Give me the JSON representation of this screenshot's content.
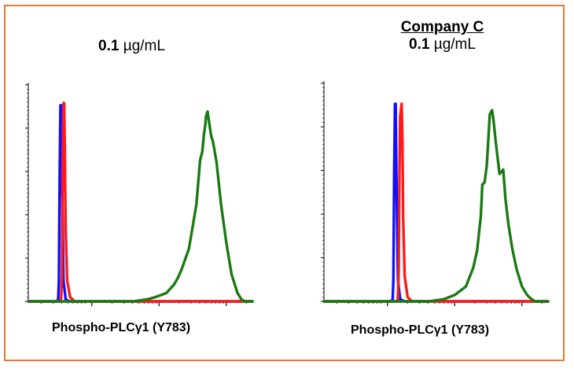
{
  "colors": {
    "frame": "#e07b39",
    "blue": "#1010ff",
    "red": "#ff1a1a",
    "green": "#1a7a12"
  },
  "chart_data": [
    {
      "type": "line",
      "title": "",
      "subtitle_value": "0.1",
      "subtitle_unit": "µg/mL",
      "xlabel": "Phospho-PLCγ1 (Y783)",
      "ylabel": "",
      "x_scale": "log",
      "x_range": [
        0,
        300
      ],
      "y_range": [
        0,
        100
      ],
      "series": [
        {
          "color": "blue",
          "x": [
            0,
            20,
            30,
            38,
            40,
            41,
            42,
            43,
            44,
            45,
            47,
            50,
            55,
            70,
            300
          ],
          "y": [
            0,
            0,
            0,
            0,
            1,
            10,
            60,
            93,
            93,
            60,
            10,
            1,
            0,
            0,
            0
          ]
        },
        {
          "color": "red",
          "x": [
            0,
            30,
            40,
            43,
            44,
            45,
            46,
            47,
            48,
            49,
            50,
            52,
            56,
            62,
            70,
            300
          ],
          "y": [
            0,
            0,
            0,
            0,
            2,
            12,
            65,
            94,
            94,
            70,
            35,
            10,
            2,
            0,
            0,
            0
          ]
        },
        {
          "color": "green",
          "x": [
            0,
            100,
            140,
            160,
            170,
            185,
            195,
            200,
            205,
            215,
            225,
            230,
            233,
            235,
            237,
            238,
            240,
            242,
            245,
            247,
            252,
            258,
            265,
            272,
            280,
            285,
            290,
            300
          ],
          "y": [
            0,
            0,
            0,
            1,
            2,
            4,
            8,
            11,
            15,
            25,
            46,
            67,
            71,
            79,
            84,
            88,
            90,
            85,
            78,
            76,
            66,
            46,
            28,
            13,
            4,
            1,
            0,
            0
          ]
        }
      ]
    },
    {
      "type": "line",
      "title": "Company C",
      "subtitle_value": "0.1",
      "subtitle_unit": "µg/mL",
      "xlabel": "Phospho-PLCγ1 (Y783)",
      "ylabel": "",
      "x_scale": "log",
      "x_range": [
        0,
        300
      ],
      "y_range": [
        0,
        100
      ],
      "series": [
        {
          "color": "blue",
          "x": [
            0,
            60,
            80,
            90,
            92,
            93,
            94,
            95,
            96,
            97,
            99,
            102,
            108,
            120,
            300
          ],
          "y": [
            0,
            0,
            0,
            0,
            1,
            10,
            60,
            93,
            93,
            60,
            10,
            1,
            0,
            0,
            0
          ]
        },
        {
          "color": "red",
          "x": [
            0,
            80,
            95,
            98,
            99,
            100,
            101,
            102,
            104,
            105,
            106,
            108,
            112,
            118,
            125,
            300
          ],
          "y": [
            0,
            0,
            0,
            0,
            2,
            14,
            60,
            87,
            93,
            75,
            40,
            12,
            2,
            0,
            0,
            0
          ]
        },
        {
          "color": "green",
          "x": [
            0,
            100,
            140,
            160,
            175,
            190,
            200,
            205,
            210,
            212,
            215,
            218,
            220,
            222,
            225,
            227,
            230,
            235,
            240,
            243,
            247,
            252,
            258,
            265,
            272,
            278,
            283,
            290,
            300
          ],
          "y": [
            0,
            0,
            0,
            1,
            3,
            7,
            16,
            24,
            40,
            55,
            56,
            64,
            76,
            88,
            90,
            85,
            75,
            60,
            62,
            48,
            36,
            25,
            15,
            7,
            3,
            1,
            0,
            0,
            0
          ]
        }
      ]
    }
  ]
}
